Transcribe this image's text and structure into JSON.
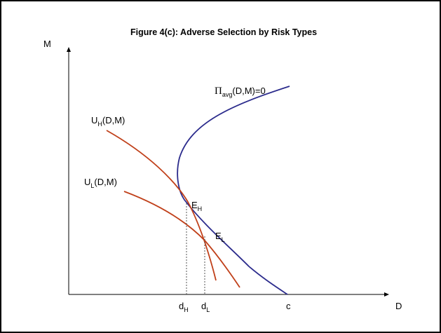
{
  "figure": {
    "title": "Figure 4(c): Adverse Selection by Risk Types",
    "axes": {
      "y_label": "M",
      "x_label": "D"
    },
    "curves": {
      "profit": {
        "symbol": "Π",
        "subscript": "avg",
        "suffix": "(D,M)=0",
        "color": "#2b2b8c"
      },
      "utility_high": {
        "letter": "U",
        "subscript": "H",
        "suffix": "(D,M)",
        "color": "#c0401a"
      },
      "utility_low": {
        "letter": "U",
        "subscript": "L",
        "suffix": "(D,M)",
        "color": "#c0401a"
      }
    },
    "points": {
      "e_h": {
        "letter": "E",
        "subscript": "H"
      },
      "e_l": {
        "letter": "E",
        "subscript": "L"
      }
    },
    "x_ticks": {
      "d_h": {
        "letter": "d",
        "subscript": "H"
      },
      "d_l": {
        "letter": "d",
        "subscript": "L"
      },
      "c": "c"
    }
  }
}
